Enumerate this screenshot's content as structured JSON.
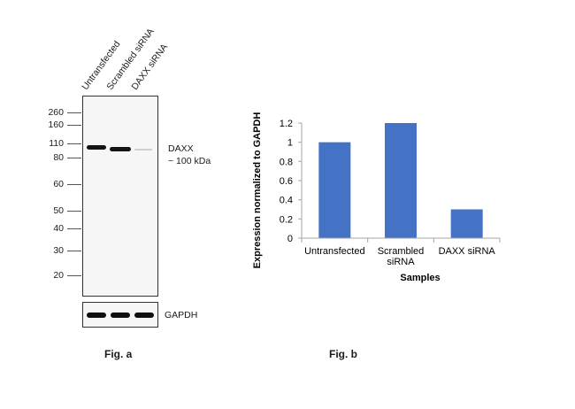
{
  "fig_a": {
    "lane_labels": [
      "Untransfected",
      "Scrambled siRNA",
      "DAXX siRNA"
    ],
    "mw_markers": [
      "260",
      "160",
      "110",
      "80",
      "60",
      "50",
      "40",
      "30",
      "20"
    ],
    "target_label": "DAXX",
    "target_size": "~ 100 kDa",
    "loading_control": "GAPDH",
    "caption": "Fig. a"
  },
  "fig_b": {
    "caption": "Fig. b"
  },
  "chart_data": {
    "type": "bar",
    "categories": [
      "Untransfected",
      "Scrambled\nsiRNA",
      "DAXX siRNA"
    ],
    "values": [
      1.0,
      1.2,
      0.3
    ],
    "title": "",
    "xlabel": "Samples",
    "ylabel": "Expression  normalized to GAPDH",
    "ylim": [
      0,
      1.2
    ],
    "yticks": [
      "0",
      "0.2",
      "0.4",
      "0.6",
      "0.8",
      "1",
      "1.2"
    ],
    "bar_color": "#4472C4",
    "grid": false
  }
}
